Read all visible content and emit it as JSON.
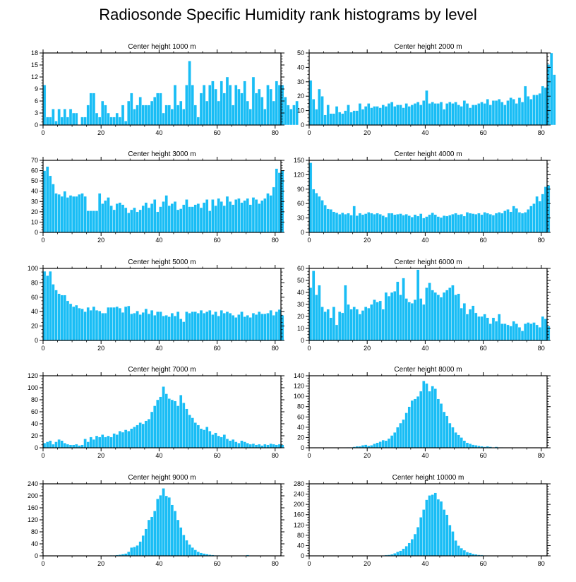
{
  "title": "Radiosonde Specific Humidity rank histograms by level",
  "colors": {
    "bar": "#19bdf5",
    "bar_edge": "#ffffff",
    "axis": "#000000"
  },
  "chart_data": [
    {
      "type": "bar",
      "title": "Center height 1000 m",
      "xlabel": "",
      "ylabel": "",
      "xlim": [
        0,
        82
      ],
      "ylim": [
        0,
        18
      ],
      "xticks": [
        0,
        20,
        40,
        60,
        80
      ],
      "yticks": [
        0,
        3,
        6,
        9,
        12,
        15,
        18
      ],
      "values": [
        10,
        2,
        2,
        4,
        1,
        4,
        2,
        4,
        2,
        4,
        3,
        3,
        0,
        2,
        2,
        5,
        8,
        8,
        3,
        2,
        6,
        5,
        3,
        2,
        2,
        3,
        2,
        5,
        1,
        6,
        8,
        4,
        5,
        7,
        5,
        5,
        5,
        6,
        7,
        8,
        8,
        3,
        5,
        5,
        4,
        10,
        5,
        6,
        4,
        10,
        16,
        10,
        5,
        2,
        8,
        10,
        6,
        10,
        11,
        9,
        6,
        11,
        8,
        12,
        10,
        5,
        10,
        9,
        8,
        11,
        6,
        4,
        12,
        8,
        9,
        7,
        4,
        10,
        9,
        6,
        11,
        10,
        10,
        7,
        5,
        4,
        5,
        6
      ]
    },
    {
      "type": "bar",
      "title": "Center height 2000 m",
      "xlabel": "",
      "ylabel": "",
      "xlim": [
        0,
        82
      ],
      "ylim": [
        0,
        50
      ],
      "xticks": [
        0,
        20,
        40,
        60,
        80
      ],
      "yticks": [
        0,
        10,
        20,
        30,
        40,
        50
      ],
      "values": [
        31,
        18,
        11,
        25,
        20,
        7,
        14,
        8,
        8,
        13,
        9,
        8,
        10,
        14,
        9,
        10,
        10,
        15,
        11,
        13,
        15,
        12,
        13,
        13,
        12,
        14,
        13,
        15,
        16,
        13,
        14,
        14,
        12,
        15,
        13,
        14,
        15,
        16,
        14,
        17,
        24,
        15,
        16,
        15,
        15,
        16,
        11,
        15,
        16,
        15,
        16,
        14,
        13,
        17,
        15,
        12,
        14,
        14,
        15,
        16,
        15,
        18,
        14,
        17,
        17,
        18,
        16,
        14,
        17,
        19,
        18,
        15,
        19,
        16,
        27,
        20,
        18,
        21,
        21,
        22,
        27,
        26,
        42,
        50,
        35
      ]
    },
    {
      "type": "bar",
      "title": "Center height 3000 m",
      "xlabel": "",
      "ylabel": "",
      "xlim": [
        0,
        82
      ],
      "ylim": [
        0,
        70
      ],
      "xticks": [
        0,
        20,
        40,
        60,
        80
      ],
      "yticks": [
        0,
        10,
        20,
        30,
        40,
        50,
        60,
        70
      ],
      "values": [
        60,
        64,
        55,
        47,
        38,
        37,
        35,
        40,
        34,
        36,
        35,
        35,
        37,
        38,
        35,
        21,
        21,
        21,
        21,
        38,
        28,
        31,
        34,
        26,
        22,
        28,
        29,
        27,
        24,
        19,
        22,
        24,
        20,
        22,
        26,
        29,
        24,
        28,
        32,
        20,
        25,
        30,
        36,
        26,
        28,
        30,
        22,
        23,
        27,
        32,
        25,
        25,
        27,
        28,
        24,
        29,
        32,
        21,
        32,
        26,
        33,
        30,
        26,
        35,
        30,
        27,
        32,
        33,
        29,
        31,
        33,
        27,
        34,
        32,
        28,
        31,
        33,
        38,
        36,
        44,
        62,
        58,
        60
      ]
    },
    {
      "type": "bar",
      "title": "Center height 4000 m",
      "xlabel": "",
      "ylabel": "",
      "xlim": [
        0,
        82
      ],
      "ylim": [
        0,
        150
      ],
      "xticks": [
        0,
        20,
        40,
        60,
        80
      ],
      "yticks": [
        0,
        30,
        60,
        90,
        120,
        150
      ],
      "values": [
        145,
        90,
        82,
        75,
        67,
        57,
        49,
        48,
        43,
        41,
        38,
        41,
        38,
        40,
        36,
        55,
        35,
        40,
        37,
        39,
        42,
        40,
        38,
        40,
        38,
        35,
        32,
        40,
        40,
        37,
        38,
        39,
        36,
        38,
        35,
        32,
        37,
        34,
        39,
        30,
        33,
        37,
        41,
        37,
        33,
        31,
        35,
        34,
        36,
        38,
        40,
        37,
        38,
        34,
        42,
        40,
        39,
        38,
        40,
        37,
        42,
        40,
        38,
        36,
        40,
        42,
        40,
        45,
        48,
        43,
        55,
        50,
        42,
        40,
        42,
        48,
        55,
        60,
        75,
        65,
        80,
        95,
        98
      ]
    },
    {
      "type": "bar",
      "title": "Center height 5000 m",
      "xlabel": "",
      "ylabel": "",
      "xlim": [
        0,
        82
      ],
      "ylim": [
        0,
        100
      ],
      "xticks": [
        0,
        20,
        40,
        60,
        80
      ],
      "yticks": [
        0,
        20,
        40,
        60,
        80,
        100
      ],
      "values": [
        96,
        90,
        96,
        78,
        70,
        65,
        63,
        63,
        55,
        51,
        47,
        49,
        45,
        44,
        40,
        46,
        42,
        47,
        42,
        41,
        38,
        38,
        46,
        46,
        46,
        47,
        45,
        39,
        47,
        48,
        37,
        38,
        41,
        36,
        39,
        44,
        37,
        42,
        35,
        40,
        40,
        34,
        35,
        33,
        38,
        34,
        40,
        30,
        26,
        40,
        38,
        40,
        40,
        38,
        42,
        38,
        40,
        42,
        36,
        40,
        34,
        42,
        38,
        40,
        38,
        35,
        32,
        36,
        40,
        33,
        35,
        32,
        38,
        36,
        40,
        37,
        37,
        38,
        42,
        35,
        40,
        43,
        35
      ]
    },
    {
      "type": "bar",
      "title": "Center height 6000 m",
      "xlabel": "",
      "ylabel": "",
      "xlim": [
        0,
        82
      ],
      "ylim": [
        0,
        60
      ],
      "xticks": [
        0,
        20,
        40,
        60,
        80
      ],
      "yticks": [
        0,
        10,
        20,
        30,
        40,
        50,
        60
      ],
      "values": [
        44,
        58,
        38,
        46,
        28,
        24,
        26,
        19,
        28,
        13,
        24,
        23,
        46,
        30,
        26,
        28,
        26,
        22,
        25,
        28,
        27,
        30,
        34,
        32,
        33,
        26,
        40,
        37,
        40,
        41,
        49,
        38,
        52,
        35,
        32,
        31,
        34,
        59,
        35,
        30,
        44,
        48,
        42,
        40,
        38,
        36,
        40,
        42,
        44,
        46,
        38,
        39,
        27,
        31,
        22,
        26,
        29,
        23,
        20,
        20,
        22,
        19,
        14,
        19,
        16,
        22,
        14,
        14,
        13,
        12,
        16,
        14,
        11,
        8,
        14,
        15,
        14,
        15,
        13,
        11,
        20,
        18,
        12
      ]
    },
    {
      "type": "bar",
      "title": "Center height 7000 m",
      "xlabel": "",
      "ylabel": "",
      "xlim": [
        0,
        82
      ],
      "ylim": [
        0,
        120
      ],
      "xticks": [
        0,
        20,
        40,
        60,
        80
      ],
      "yticks": [
        0,
        20,
        40,
        60,
        80,
        100,
        120
      ],
      "values": [
        8,
        10,
        12,
        6,
        10,
        14,
        12,
        8,
        6,
        5,
        5,
        6,
        4,
        5,
        15,
        10,
        18,
        14,
        20,
        18,
        22,
        18,
        20,
        18,
        24,
        22,
        28,
        26,
        30,
        28,
        32,
        35,
        38,
        42,
        40,
        45,
        48,
        60,
        70,
        80,
        85,
        102,
        90,
        82,
        80,
        78,
        70,
        88,
        75,
        65,
        55,
        50,
        42,
        38,
        32,
        30,
        35,
        28,
        22,
        25,
        20,
        18,
        22,
        15,
        12,
        14,
        10,
        8,
        12,
        10,
        8,
        6,
        7,
        5,
        6,
        4,
        6,
        5,
        7,
        6,
        5,
        6,
        5
      ]
    },
    {
      "type": "bar",
      "title": "Center height 8000 m",
      "xlabel": "",
      "ylabel": "",
      "xlim": [
        0,
        82
      ],
      "ylim": [
        0,
        140
      ],
      "xticks": [
        0,
        20,
        40,
        60,
        80
      ],
      "yticks": [
        0,
        20,
        40,
        60,
        80,
        100,
        120,
        140
      ],
      "values": [
        0,
        0,
        0,
        0,
        0,
        0,
        0,
        0,
        0,
        0,
        0,
        0,
        0,
        1,
        1,
        2,
        3,
        3,
        5,
        6,
        4,
        5,
        8,
        10,
        12,
        15,
        14,
        18,
        24,
        30,
        40,
        48,
        55,
        68,
        80,
        92,
        95,
        100,
        110,
        130,
        125,
        110,
        120,
        115,
        95,
        86,
        70,
        62,
        48,
        40,
        30,
        25,
        20,
        14,
        10,
        8,
        6,
        5,
        4,
        3,
        2,
        3,
        2,
        1,
        2,
        1,
        1,
        0,
        0,
        0,
        0,
        0,
        0,
        0,
        0,
        0,
        0,
        0,
        0,
        0,
        0,
        0,
        0
      ]
    },
    {
      "type": "bar",
      "title": "Center height 9000 m",
      "xlabel": "",
      "ylabel": "",
      "xlim": [
        0,
        82
      ],
      "ylim": [
        0,
        240
      ],
      "xticks": [
        0,
        20,
        40,
        60,
        80
      ],
      "yticks": [
        0,
        40,
        80,
        120,
        160,
        200,
        240
      ],
      "values": [
        0,
        0,
        0,
        0,
        0,
        0,
        0,
        0,
        0,
        0,
        0,
        0,
        0,
        0,
        0,
        0,
        0,
        0,
        0,
        0,
        0,
        0,
        1,
        2,
        2,
        3,
        4,
        6,
        8,
        14,
        28,
        30,
        35,
        48,
        68,
        90,
        120,
        130,
        150,
        190,
        202,
        225,
        200,
        195,
        170,
        150,
        120,
        95,
        70,
        52,
        38,
        28,
        20,
        14,
        10,
        8,
        6,
        4,
        3,
        2,
        2,
        1,
        1,
        1,
        1,
        1,
        0,
        0,
        1,
        1,
        3,
        1,
        0,
        0,
        0,
        0,
        0,
        0,
        0,
        0,
        0,
        0,
        0
      ]
    },
    {
      "type": "bar",
      "title": "Center height 10000 m",
      "xlabel": "",
      "ylabel": "",
      "xlim": [
        0,
        82
      ],
      "ylim": [
        0,
        280
      ],
      "xticks": [
        0,
        20,
        40,
        60,
        80
      ],
      "yticks": [
        0,
        40,
        80,
        120,
        160,
        200,
        240,
        280
      ],
      "values": [
        0,
        0,
        0,
        0,
        0,
        0,
        0,
        0,
        0,
        0,
        0,
        0,
        0,
        0,
        0,
        0,
        0,
        0,
        0,
        0,
        0,
        0,
        0,
        0,
        1,
        2,
        3,
        4,
        6,
        10,
        16,
        20,
        28,
        38,
        50,
        65,
        85,
        112,
        150,
        180,
        218,
        235,
        238,
        245,
        220,
        212,
        180,
        160,
        120,
        95,
        60,
        40,
        30,
        22,
        15,
        12,
        8,
        6,
        4,
        3,
        2,
        1,
        1,
        0,
        0,
        0,
        0,
        0,
        0,
        0,
        0,
        0,
        0,
        0,
        0,
        0,
        0,
        0,
        0,
        0,
        0,
        0,
        0
      ]
    }
  ]
}
